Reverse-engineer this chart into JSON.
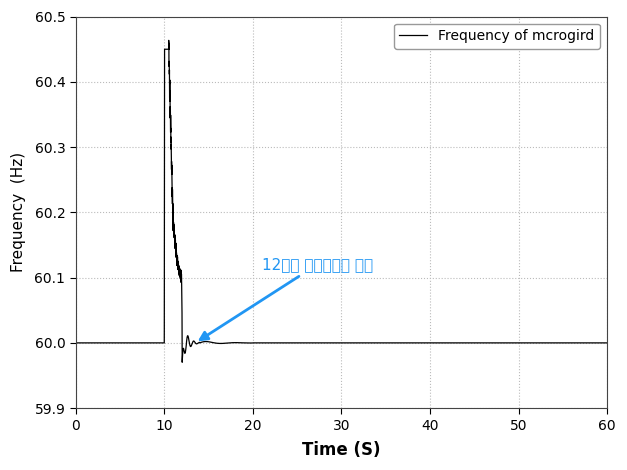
{
  "title": "",
  "xlabel": "Time (S)",
  "ylabel": "Frequency  (Hz)",
  "xlim": [
    0,
    60
  ],
  "ylim": [
    59.9,
    60.5
  ],
  "yticks": [
    59.9,
    60.0,
    60.1,
    60.2,
    60.3,
    60.4,
    60.5
  ],
  "xticks": [
    0,
    10,
    20,
    30,
    40,
    50,
    60
  ],
  "legend_label": "Frequency of mcrogird",
  "annotation_text": "12초에 독립모드로 전환",
  "annotation_color": "#2196F3",
  "line_color": "#000000",
  "grid_color": "#BBBBBB",
  "background_color": "#FFFFFF",
  "base_freq": 60.0
}
